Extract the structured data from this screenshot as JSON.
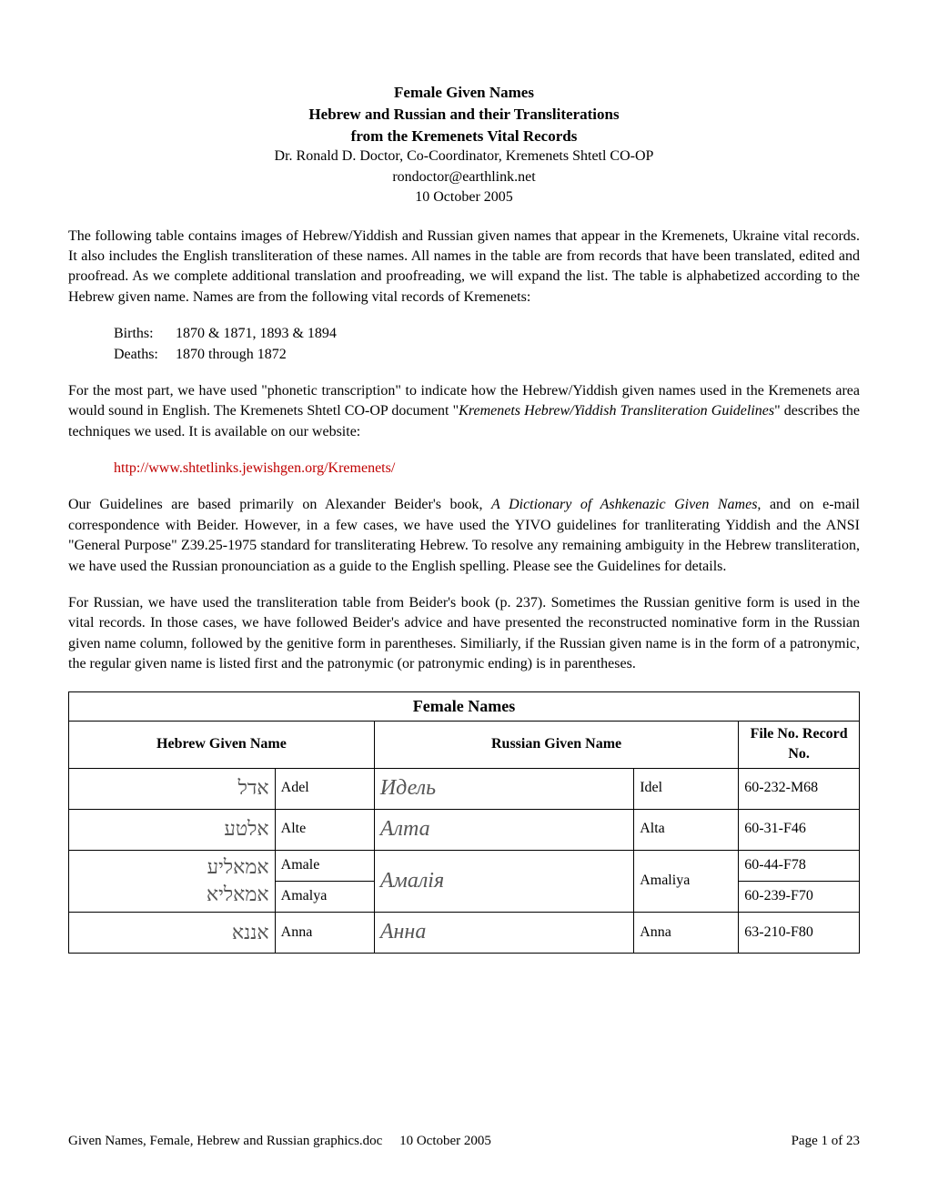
{
  "header": {
    "title1": "Female Given Names",
    "title2": "Hebrew and Russian and their Transliterations",
    "title3": "from the Kremenets Vital Records",
    "author": "Dr. Ronald D. Doctor, Co-Coordinator, Kremenets Shtetl CO-OP",
    "email": "rondoctor@earthlink.net",
    "date": "10 October 2005"
  },
  "para1": "The following table contains images of Hebrew/Yiddish and Russian given names that appear in the Kremenets, Ukraine vital records. It also includes the English transliteration of these names. All names in the table are from records that have been translated, edited and proofread. As we complete additional translation and proofreading, we will expand the list. The table is alphabetized according to the Hebrew given name. Names are from the following vital records of Kremenets:",
  "records": {
    "births_label": "Births:",
    "births_value": "1870 & 1871, 1893 & 1894",
    "deaths_label": "Deaths:",
    "deaths_value": "1870 through 1872"
  },
  "para2_part1": "For the most part, we have used \"phonetic transcription\" to indicate how the Hebrew/Yiddish given names used in the Kremenets area would sound in English. The Kremenets Shtetl CO-OP document \"",
  "para2_italic": "Kremenets Hebrew/Yiddish Transliteration Guidelines",
  "para2_part2": "\" describes the techniques we used. It is available on our website:",
  "link": "http://www.shtetlinks.jewishgen.org/Kremenets/",
  "para3_part1": "Our Guidelines are based primarily on Alexander Beider's book, ",
  "para3_italic": "A Dictionary of Ashkenazic Given Names,",
  "para3_part2": " and on e-mail correspondence with Beider. However, in a few cases, we have used the YIVO guidelines for tranliterating Yiddish and the ANSI \"General Purpose\" Z39.25-1975 standard for transliterating Hebrew. To resolve any remaining ambiguity in the Hebrew transliteration, we have used the Russian pronounciation as a guide to the English spelling. Please see the Guidelines for details.",
  "para4": "For Russian, we have used the transliteration table from Beider's book (p. 237). Sometimes the Russian genitive form is used in the vital records. In those cases, we have followed Beider's advice and have presented the reconstructed nominative form in the Russian given name column, followed by the genitive form in parentheses. Similiarly, if the Russian given name is in the form of a patronymic, the regular given name is listed first and the patronymic (or patronymic ending) is in parentheses.",
  "table": {
    "title": "Female Names",
    "headers": {
      "hebrew": "Hebrew Given Name",
      "russian": "Russian Given Name",
      "fileno": "File No. Record No."
    },
    "rows": [
      {
        "hebrew_script": "אדל",
        "hebrew_translit": "Adel",
        "russian_script": "Идель",
        "russian_translit": "Idel",
        "fileno": "60-232-M68"
      },
      {
        "hebrew_script": "אלטע",
        "hebrew_translit": "Alte",
        "russian_script": "Алта",
        "russian_translit": "Alta",
        "fileno": "60-31-F46"
      },
      {
        "hebrew_script": "אמאליע",
        "hebrew_translit": "Amale",
        "russian_script": "Амалія",
        "russian_translit": "Amaliya",
        "fileno": "60-44-F78"
      },
      {
        "hebrew_script": "אמאליא",
        "hebrew_translit": "Amalya",
        "russian_script": "",
        "russian_translit": "",
        "fileno": "60-239-F70"
      },
      {
        "hebrew_script": "אננא",
        "hebrew_translit": "Anna",
        "russian_script": "Анна",
        "russian_translit": "Anna",
        "fileno": "63-210-F80"
      }
    ]
  },
  "footer": {
    "left": "Given Names, Female, Hebrew and Russian graphics.doc",
    "center": "10 October 2005",
    "right": "Page 1 of 23"
  }
}
